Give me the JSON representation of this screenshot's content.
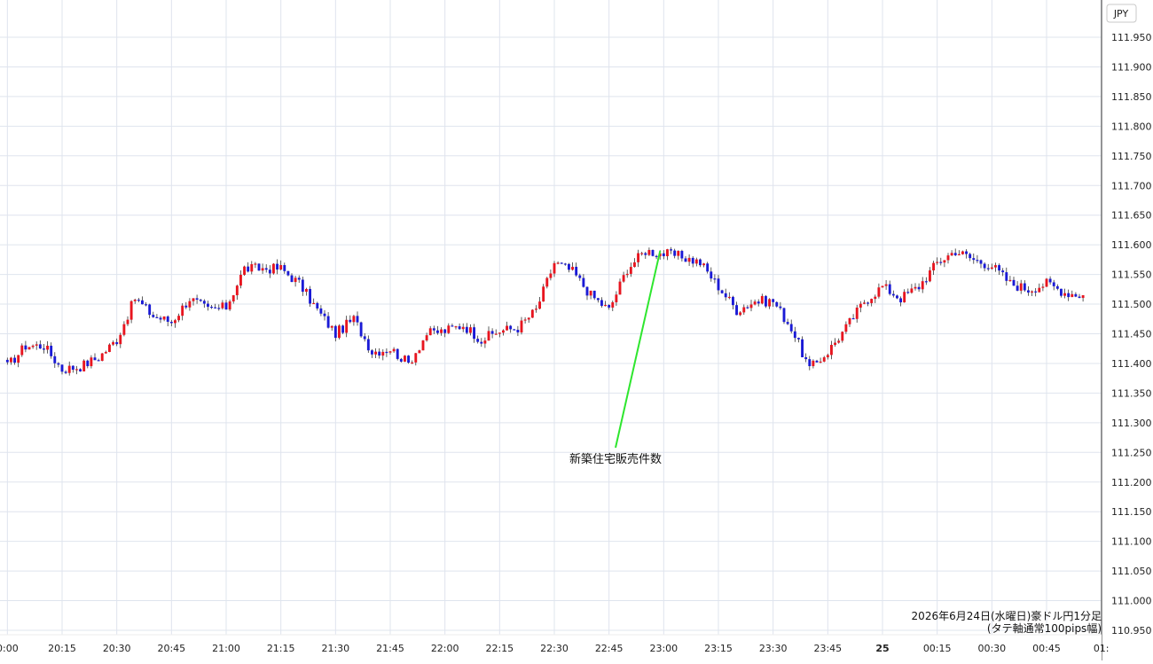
{
  "chart_data": {
    "type": "candlestick",
    "currency": "JPY",
    "colors": {
      "up": "#e8151f",
      "down": "#1a1ad6",
      "grid": "#dfe4ee",
      "annotation_line": "#2ee62e",
      "axis": "#333333"
    },
    "grid": true,
    "ylim": [
      110.95,
      111.97
    ],
    "y_ticks": [
      "111.950",
      "111.900",
      "111.850",
      "111.800",
      "111.750",
      "111.700",
      "111.650",
      "111.600",
      "111.550",
      "111.500",
      "111.450",
      "111.400",
      "111.350",
      "111.300",
      "111.250",
      "111.200",
      "111.150",
      "111.100",
      "111.050",
      "111.000",
      "110.950"
    ],
    "x_ticks": [
      "0:00",
      "20:15",
      "20:30",
      "20:45",
      "21:00",
      "21:15",
      "21:30",
      "21:45",
      "22:00",
      "22:15",
      "22:30",
      "22:45",
      "23:00",
      "23:15",
      "23:30",
      "23:45",
      "25",
      "00:15",
      "00:30",
      "00:45",
      "01:"
    ],
    "annotation": {
      "text": "新築住宅販売件数",
      "time": "23:00",
      "price": 111.59
    },
    "caption_line1": "2026年6月24日(水曜日)豪ドル円1分足",
    "caption_line2": "(タテ軸通常100pips幅)",
    "series": [
      {
        "time": "20:00",
        "close": 111.395
      },
      {
        "time": "20:05",
        "close": 111.43
      },
      {
        "time": "20:10",
        "close": 111.43
      },
      {
        "time": "20:15",
        "close": 111.39
      },
      {
        "time": "20:20",
        "close": 111.395
      },
      {
        "time": "20:25",
        "close": 111.41
      },
      {
        "time": "20:30",
        "close": 111.44
      },
      {
        "time": "20:35",
        "close": 111.51
      },
      {
        "time": "20:40",
        "close": 111.48
      },
      {
        "time": "20:45",
        "close": 111.47
      },
      {
        "time": "20:50",
        "close": 111.51
      },
      {
        "time": "20:55",
        "close": 111.49
      },
      {
        "time": "21:00",
        "close": 111.495
      },
      {
        "time": "21:05",
        "close": 111.56
      },
      {
        "time": "21:10",
        "close": 111.56
      },
      {
        "time": "21:15",
        "close": 111.56
      },
      {
        "time": "21:20",
        "close": 111.535
      },
      {
        "time": "21:25",
        "close": 111.49
      },
      {
        "time": "21:30",
        "close": 111.45
      },
      {
        "time": "21:35",
        "close": 111.475
      },
      {
        "time": "21:40",
        "close": 111.42
      },
      {
        "time": "21:45",
        "close": 111.425
      },
      {
        "time": "21:50",
        "close": 111.4
      },
      {
        "time": "21:55",
        "close": 111.45
      },
      {
        "time": "22:00",
        "close": 111.455
      },
      {
        "time": "22:05",
        "close": 111.465
      },
      {
        "time": "22:10",
        "close": 111.44
      },
      {
        "time": "22:15",
        "close": 111.455
      },
      {
        "time": "22:20",
        "close": 111.46
      },
      {
        "time": "22:25",
        "close": 111.49
      },
      {
        "time": "22:30",
        "close": 111.57
      },
      {
        "time": "22:35",
        "close": 111.555
      },
      {
        "time": "22:40",
        "close": 111.515
      },
      {
        "time": "22:45",
        "close": 111.49
      },
      {
        "time": "22:50",
        "close": 111.56
      },
      {
        "time": "22:55",
        "close": 111.59
      },
      {
        "time": "23:00",
        "close": 111.585
      },
      {
        "time": "23:05",
        "close": 111.58
      },
      {
        "time": "23:10",
        "close": 111.57
      },
      {
        "time": "23:15",
        "close": 111.53
      },
      {
        "time": "23:20",
        "close": 111.49
      },
      {
        "time": "23:25",
        "close": 111.505
      },
      {
        "time": "23:30",
        "close": 111.505
      },
      {
        "time": "23:35",
        "close": 111.46
      },
      {
        "time": "23:40",
        "close": 111.39
      },
      {
        "time": "23:45",
        "close": 111.42
      },
      {
        "time": "23:50",
        "close": 111.46
      },
      {
        "time": "23:55",
        "close": 111.505
      },
      {
        "time": "00:00",
        "close": 111.53
      },
      {
        "time": "00:05",
        "close": 111.51
      },
      {
        "time": "00:10",
        "close": 111.53
      },
      {
        "time": "00:15",
        "close": 111.57
      },
      {
        "time": "00:20",
        "close": 111.59
      },
      {
        "time": "00:25",
        "close": 111.575
      },
      {
        "time": "00:30",
        "close": 111.565
      },
      {
        "time": "00:35",
        "close": 111.535
      },
      {
        "time": "00:40",
        "close": 111.525
      },
      {
        "time": "00:45",
        "close": 111.535
      },
      {
        "time": "00:50",
        "close": 111.52
      },
      {
        "time": "00:55",
        "close": 111.515
      }
    ]
  }
}
